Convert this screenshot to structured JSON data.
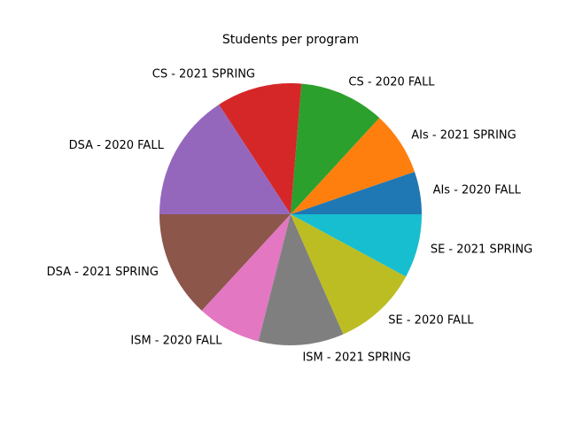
{
  "chart_data": {
    "type": "pie",
    "title": "Students per program",
    "start_angle_deg": 0,
    "direction": "counterclockwise",
    "slices": [
      {
        "label": "AIs - 2020 FALL",
        "value": 2,
        "color": "#1f77b4"
      },
      {
        "label": "AIs - 2021 SPRING",
        "value": 3,
        "color": "#ff7f0e"
      },
      {
        "label": "CS - 2020 FALL",
        "value": 4,
        "color": "#2ca02c"
      },
      {
        "label": "CS - 2021 SPRING",
        "value": 4,
        "color": "#d62728"
      },
      {
        "label": "DSA - 2020 FALL",
        "value": 6,
        "color": "#9467bd"
      },
      {
        "label": "DSA - 2021 SPRING",
        "value": 5,
        "color": "#8c564b"
      },
      {
        "label": "ISM - 2020 FALL",
        "value": 3,
        "color": "#e377c2"
      },
      {
        "label": "ISM - 2021 SPRING",
        "value": 4,
        "color": "#7f7f7f"
      },
      {
        "label": "SE - 2020 FALL",
        "value": 4,
        "color": "#bcbd22"
      },
      {
        "label": "SE - 2021 SPRING",
        "value": 3,
        "color": "#17becf"
      }
    ]
  }
}
